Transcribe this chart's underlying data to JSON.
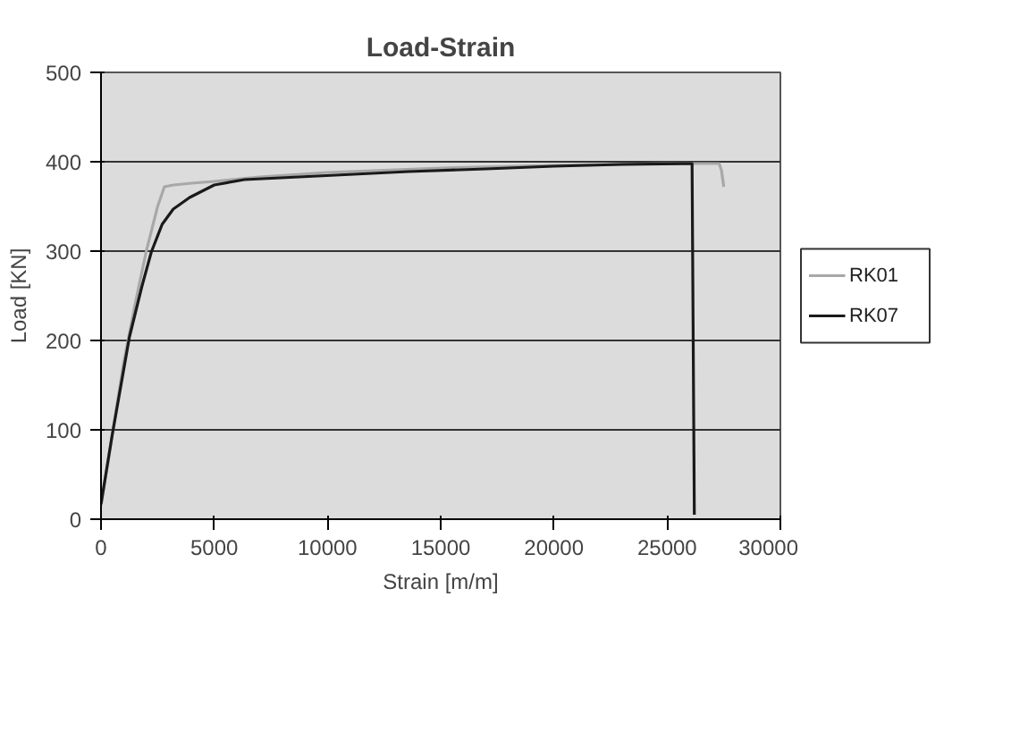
{
  "chart_data": {
    "type": "line",
    "title": "Load-Strain",
    "xlabel": "Strain [m/m]",
    "ylabel": "Load [KN]",
    "xlim": [
      0,
      30000
    ],
    "xticks": [
      0,
      5000,
      10000,
      15000,
      20000,
      25000,
      30000
    ],
    "ylim": [
      0,
      500
    ],
    "yticks": [
      0,
      100,
      200,
      300,
      400,
      500
    ],
    "grid": "y",
    "legend": "right",
    "marker": "none",
    "line_style": "solid",
    "series": [
      {
        "name": "RK01",
        "color": "#a8a8a8",
        "x": [
          0,
          500,
          1000,
          1500,
          2000,
          2500,
          2800,
          3200,
          4000,
          5000,
          7000,
          10000,
          15000,
          20000,
          25000,
          27300,
          27400,
          27500
        ],
        "values": [
          15,
          95,
          175,
          240,
          300,
          350,
          372,
          374,
          376,
          378,
          383,
          388,
          393,
          396,
          398,
          398,
          390,
          372
        ]
      },
      {
        "name": "RK07",
        "color": "#1a1a1a",
        "x": [
          0,
          500,
          1256,
          1800,
          2222,
          2700,
          3190,
          3913,
          5000,
          6330,
          8744,
          13575,
          17000,
          20000,
          23000,
          26100,
          26150,
          26200
        ],
        "values": [
          17,
          95,
          204,
          260,
          299,
          330,
          347,
          360,
          374,
          380,
          383,
          389,
          392,
          395,
          397,
          398,
          200,
          5
        ]
      }
    ]
  }
}
